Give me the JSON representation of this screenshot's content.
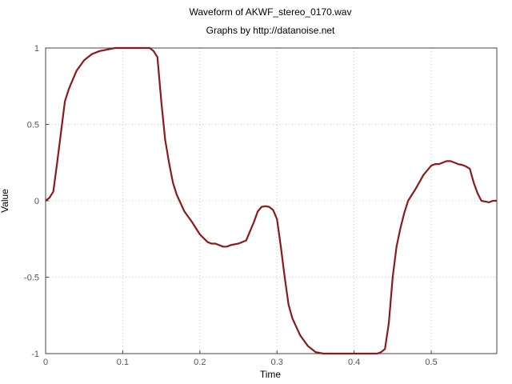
{
  "chart_data": {
    "type": "line",
    "title": "Waveform of AKWF_stereo_0170.wav",
    "subtitle": "Graphs by http://datanoise.net",
    "xlabel": "Time",
    "ylabel": "Value",
    "xlim": [
      0,
      0.585
    ],
    "ylim": [
      -1,
      1
    ],
    "x_ticks": [
      0,
      0.1,
      0.2,
      0.3,
      0.4,
      0.5
    ],
    "x_tick_labels": [
      "0",
      "0.1",
      "0.2",
      "0.3",
      "0.4",
      "0.5"
    ],
    "y_ticks": [
      1,
      0.5,
      0,
      -0.5,
      -1
    ],
    "y_tick_labels": [
      "1",
      "0.5",
      "0",
      "-0.5",
      "-1"
    ],
    "grid": true,
    "line_color": "#8b1a1a",
    "series": [
      {
        "x": [
          0,
          0.005,
          0.01,
          0.015,
          0.02,
          0.025,
          0.03,
          0.04,
          0.05,
          0.06,
          0.07,
          0.08,
          0.09,
          0.1,
          0.11,
          0.12,
          0.13,
          0.135,
          0.14,
          0.145,
          0.15,
          0.155,
          0.16,
          0.165,
          0.17,
          0.18,
          0.19,
          0.2,
          0.21,
          0.215,
          0.22,
          0.225,
          0.23,
          0.235,
          0.24,
          0.25,
          0.26,
          0.265,
          0.27,
          0.275,
          0.28,
          0.285,
          0.29,
          0.295,
          0.3,
          0.305,
          0.31,
          0.315,
          0.32,
          0.33,
          0.34,
          0.35,
          0.36,
          0.37,
          0.38,
          0.39,
          0.4,
          0.41,
          0.42,
          0.43,
          0.435,
          0.44,
          0.445,
          0.45,
          0.455,
          0.46,
          0.465,
          0.47,
          0.48,
          0.49,
          0.5,
          0.505,
          0.51,
          0.515,
          0.52,
          0.525,
          0.53,
          0.535,
          0.54,
          0.545,
          0.55,
          0.555,
          0.56,
          0.565,
          0.57,
          0.575,
          0.58,
          0.585
        ],
        "y": [
          0,
          0.02,
          0.06,
          0.25,
          0.45,
          0.65,
          0.73,
          0.85,
          0.92,
          0.96,
          0.98,
          0.99,
          1.0,
          1.0,
          1.0,
          1.0,
          1.0,
          1.0,
          0.98,
          0.94,
          0.65,
          0.4,
          0.25,
          0.12,
          0.04,
          -0.07,
          -0.14,
          -0.22,
          -0.27,
          -0.28,
          -0.28,
          -0.29,
          -0.3,
          -0.3,
          -0.29,
          -0.28,
          -0.26,
          -0.2,
          -0.14,
          -0.07,
          -0.04,
          -0.035,
          -0.04,
          -0.06,
          -0.12,
          -0.3,
          -0.5,
          -0.68,
          -0.77,
          -0.88,
          -0.95,
          -0.99,
          -1.0,
          -1.0,
          -1.0,
          -1.0,
          -1.0,
          -1.0,
          -1.0,
          -1.0,
          -0.99,
          -0.97,
          -0.8,
          -0.5,
          -0.3,
          -0.18,
          -0.08,
          0.0,
          0.08,
          0.17,
          0.23,
          0.24,
          0.24,
          0.25,
          0.26,
          0.26,
          0.25,
          0.24,
          0.235,
          0.225,
          0.21,
          0.12,
          0.05,
          0.0,
          -0.005,
          -0.01,
          0.0,
          0.0
        ]
      }
    ]
  }
}
